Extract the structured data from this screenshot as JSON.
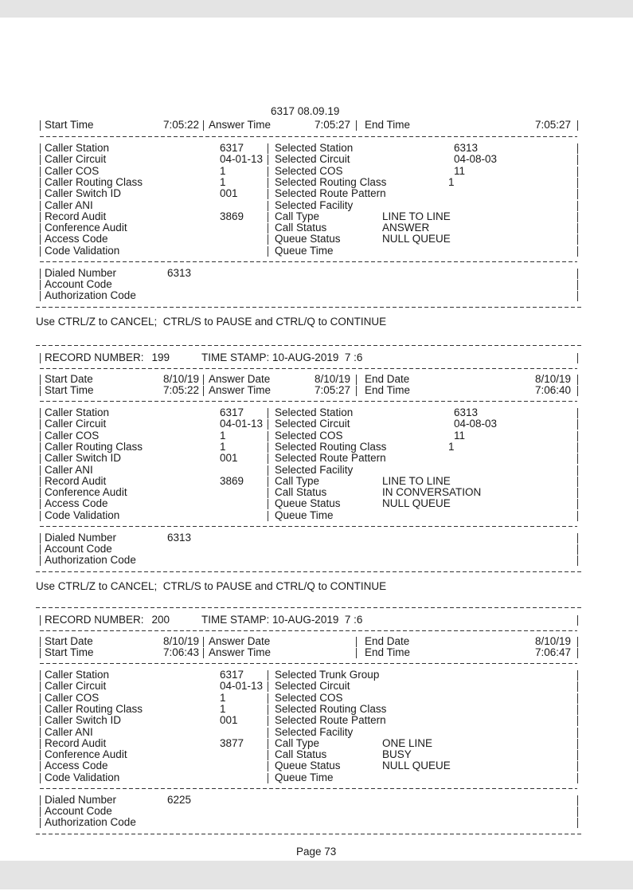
{
  "page": {
    "number_label": "Page 73"
  },
  "ctrl_message": "Use CTRL/Z to CANCEL;  CTRL/S to PAUSE and CTRL/Q to CONTINUE",
  "records": [
    {
      "title": "6317 08.09.19",
      "header": null,
      "dates": null,
      "times": {
        "start_label": "Start Time",
        "start": "7:05:22",
        "answer_label": "Answer Time",
        "answer": "7:05:27",
        "end_label": "End Time",
        "end": "7:05:27"
      },
      "left": [
        {
          "label": "Caller Station",
          "value": "6317"
        },
        {
          "label": "Caller Circuit",
          "value": "04-01-13"
        },
        {
          "label": "Caller COS",
          "value": "1"
        },
        {
          "label": "Caller Routing Class",
          "value": "1"
        },
        {
          "label": "Caller Switch ID",
          "value": "001"
        },
        {
          "label": "Caller ANI",
          "value": ""
        },
        {
          "label": "Record Audit",
          "value": "3869"
        },
        {
          "label": "Conference Audit",
          "value": ""
        },
        {
          "label": "Access Code",
          "value": ""
        },
        {
          "label": "Code Validation",
          "value": ""
        }
      ],
      "right": [
        {
          "label": "Selected Station",
          "value": "6313",
          "col": "far"
        },
        {
          "label": "Selected Circuit",
          "value": "04-08-03",
          "col": "far"
        },
        {
          "label": "Selected COS",
          "value": "11",
          "col": "far"
        },
        {
          "label": "Selected Routing Class",
          "value": "1",
          "col": "rc"
        },
        {
          "label": "Selected Route Pattern",
          "value": "",
          "col": "far"
        },
        {
          "label": "Selected Facility",
          "value": "",
          "col": "far"
        },
        {
          "label": "Call Type",
          "value": "LINE TO LINE",
          "col": "near"
        },
        {
          "label": "Call Status",
          "value": "ANSWER",
          "col": "near"
        },
        {
          "label": "Queue Status",
          "value": "NULL QUEUE",
          "col": "near"
        },
        {
          "label": "Queue Time",
          "value": "",
          "col": "near"
        }
      ],
      "bottom": [
        {
          "label": "Dialed Number",
          "value": "6313"
        },
        {
          "label": "Account Code",
          "value": ""
        },
        {
          "label": "Authorization Code",
          "value": ""
        }
      ]
    },
    {
      "header": {
        "record_label": "RECORD NUMBER:",
        "record_number": "199",
        "timestamp": "TIME STAMP: 10-AUG-2019  7 :6"
      },
      "dates": {
        "start_label": "Start Date",
        "start": "8/10/19",
        "answer_label": "Answer Date",
        "answer": "8/10/19",
        "end_label": "End Date",
        "end": "8/10/19"
      },
      "times": {
        "start_label": "Start Time",
        "start": "7:05:22",
        "answer_label": "Answer Time",
        "answer": "7:05:27",
        "end_label": "End Time",
        "end": "7:06:40"
      },
      "left": [
        {
          "label": "Caller Station",
          "value": "6317"
        },
        {
          "label": "Caller Circuit",
          "value": "04-01-13"
        },
        {
          "label": "Caller COS",
          "value": "1"
        },
        {
          "label": "Caller Routing Class",
          "value": "1"
        },
        {
          "label": "Caller Switch ID",
          "value": "001"
        },
        {
          "label": "Caller ANI",
          "value": ""
        },
        {
          "label": "Record Audit",
          "value": "3869"
        },
        {
          "label": "Conference Audit",
          "value": ""
        },
        {
          "label": "Access Code",
          "value": ""
        },
        {
          "label": "Code Validation",
          "value": ""
        }
      ],
      "right": [
        {
          "label": "Selected Station",
          "value": "6313",
          "col": "far"
        },
        {
          "label": "Selected Circuit",
          "value": "04-08-03",
          "col": "far"
        },
        {
          "label": "Selected COS",
          "value": "11",
          "col": "far"
        },
        {
          "label": "Selected Routing Class",
          "value": "1",
          "col": "rc"
        },
        {
          "label": "Selected Route Pattern",
          "value": "",
          "col": "far"
        },
        {
          "label": "Selected Facility",
          "value": "",
          "col": "far"
        },
        {
          "label": "Call Type",
          "value": "LINE TO LINE",
          "col": "near"
        },
        {
          "label": "Call Status",
          "value": "IN CONVERSATION",
          "col": "near"
        },
        {
          "label": "Queue Status",
          "value": "NULL QUEUE",
          "col": "near"
        },
        {
          "label": "Queue Time",
          "value": "",
          "col": "near"
        }
      ],
      "bottom": [
        {
          "label": "Dialed Number",
          "value": "6313"
        },
        {
          "label": "Account Code",
          "value": ""
        },
        {
          "label": "Authorization Code",
          "value": ""
        }
      ]
    },
    {
      "header": {
        "record_label": "RECORD NUMBER:",
        "record_number": "200",
        "timestamp": "TIME STAMP: 10-AUG-2019  7 :6"
      },
      "dates": {
        "start_label": "Start Date",
        "start": "8/10/19",
        "answer_label": "Answer Date",
        "answer": "",
        "end_label": "End Date",
        "end": "8/10/19"
      },
      "times": {
        "start_label": "Start Time",
        "start": "7:06:43",
        "answer_label": "Answer Time",
        "answer": "",
        "end_label": "End Time",
        "end": "7:06:47"
      },
      "left": [
        {
          "label": "Caller Station",
          "value": "6317"
        },
        {
          "label": "Caller Circuit",
          "value": "04-01-13"
        },
        {
          "label": "Caller COS",
          "value": "1"
        },
        {
          "label": "Caller Routing Class",
          "value": "1"
        },
        {
          "label": "Caller Switch ID",
          "value": "001"
        },
        {
          "label": "Caller ANI",
          "value": ""
        },
        {
          "label": "Record Audit",
          "value": "3877"
        },
        {
          "label": "Conference Audit",
          "value": ""
        },
        {
          "label": "Access Code",
          "value": ""
        },
        {
          "label": "Code Validation",
          "value": ""
        }
      ],
      "right": [
        {
          "label": "Selected Trunk Group",
          "value": "",
          "col": "far"
        },
        {
          "label": "Selected Circuit",
          "value": "",
          "col": "far"
        },
        {
          "label": "Selected COS",
          "value": "",
          "col": "far"
        },
        {
          "label": "Selected Routing Class",
          "value": "",
          "col": "rc"
        },
        {
          "label": "Selected Route Pattern",
          "value": "",
          "col": "far"
        },
        {
          "label": "Selected Facility",
          "value": "",
          "col": "far"
        },
        {
          "label": "Call Type",
          "value": "ONE LINE",
          "col": "near"
        },
        {
          "label": "Call Status",
          "value": "BUSY",
          "col": "near"
        },
        {
          "label": "Queue Status",
          "value": "NULL QUEUE",
          "col": "near"
        },
        {
          "label": "Queue Time",
          "value": "",
          "col": "near"
        }
      ],
      "bottom": [
        {
          "label": "Dialed Number",
          "value": "6225"
        },
        {
          "label": "Account Code",
          "value": ""
        },
        {
          "label": "Authorization Code",
          "value": ""
        }
      ]
    }
  ]
}
